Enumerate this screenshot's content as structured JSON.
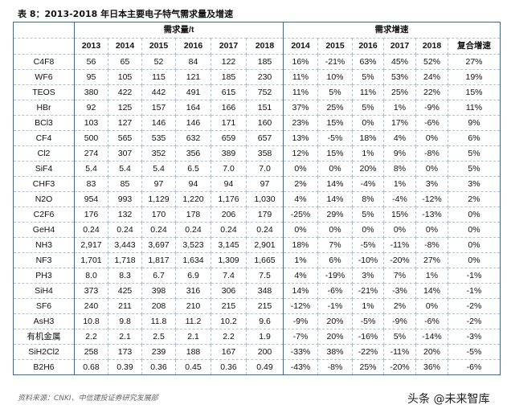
{
  "title": "表 8：2013-2018 年日本主要电子特气需求量及增速",
  "header": {
    "group_demand": "需求量/t",
    "group_growth": "需求增速",
    "demand_years": [
      "2013",
      "2014",
      "2015",
      "2016",
      "2017",
      "2018"
    ],
    "growth_years": [
      "2014",
      "2015",
      "2016",
      "2017",
      "2018",
      "复合增速"
    ]
  },
  "rows": [
    {
      "name": "C4F8",
      "d": [
        "56",
        "65",
        "52",
        "84",
        "122",
        "185"
      ],
      "g": [
        "16%",
        "-21%",
        "63%",
        "45%",
        "52%",
        "27%"
      ]
    },
    {
      "name": "WF6",
      "d": [
        "95",
        "105",
        "115",
        "121",
        "185",
        "230"
      ],
      "g": [
        "11%",
        "10%",
        "5%",
        "53%",
        "24%",
        "19%"
      ]
    },
    {
      "name": "TEOS",
      "d": [
        "380",
        "422",
        "442",
        "491",
        "615",
        "752"
      ],
      "g": [
        "11%",
        "5%",
        "11%",
        "25%",
        "22%",
        "15%"
      ]
    },
    {
      "name": "HBr",
      "d": [
        "92",
        "125",
        "157",
        "164",
        "166",
        "151"
      ],
      "g": [
        "37%",
        "25%",
        "5%",
        "1%",
        "-9%",
        "11%"
      ]
    },
    {
      "name": "BCl3",
      "d": [
        "103",
        "127",
        "146",
        "146",
        "171",
        "160"
      ],
      "g": [
        "23%",
        "15%",
        "0%",
        "17%",
        "-6%",
        "9%"
      ]
    },
    {
      "name": "CF4",
      "d": [
        "500",
        "565",
        "535",
        "632",
        "659",
        "657"
      ],
      "g": [
        "13%",
        "-5%",
        "18%",
        "4%",
        "0%",
        "6%"
      ]
    },
    {
      "name": "Cl2",
      "d": [
        "274",
        "307",
        "352",
        "356",
        "389",
        "358"
      ],
      "g": [
        "12%",
        "15%",
        "1%",
        "9%",
        "-8%",
        "5%"
      ]
    },
    {
      "name": "SiF4",
      "d": [
        "5.4",
        "5.4",
        "5.4",
        "6.5",
        "7.0",
        "7.0"
      ],
      "g": [
        "0%",
        "0%",
        "20%",
        "8%",
        "0%",
        "5%"
      ]
    },
    {
      "name": "CHF3",
      "d": [
        "83",
        "85",
        "97",
        "94",
        "94",
        "97"
      ],
      "g": [
        "2%",
        "14%",
        "-4%",
        "1%",
        "3%",
        "3%"
      ]
    },
    {
      "name": "N2O",
      "d": [
        "954",
        "993",
        "1,129",
        "1,220",
        "1,176",
        "1,030"
      ],
      "g": [
        "4%",
        "14%",
        "8%",
        "-4%",
        "-12%",
        "2%"
      ]
    },
    {
      "name": "C2F6",
      "d": [
        "176",
        "132",
        "170",
        "178",
        "206",
        "179"
      ],
      "g": [
        "-25%",
        "29%",
        "5%",
        "15%",
        "-13%",
        "0%"
      ]
    },
    {
      "name": "GeH4",
      "d": [
        "0.24",
        "0.24",
        "0.24",
        "0.24",
        "0.24",
        "0.24"
      ],
      "g": [
        "0%",
        "0%",
        "0%",
        "0%",
        "0%",
        "0%"
      ]
    },
    {
      "name": "NH3",
      "d": [
        "2,917",
        "3,443",
        "3,697",
        "3,523",
        "3,145",
        "2,901"
      ],
      "g": [
        "18%",
        "7%",
        "-5%",
        "-11%",
        "-8%",
        "0%"
      ]
    },
    {
      "name": "NF3",
      "d": [
        "1,701",
        "1,718",
        "1,817",
        "1,634",
        "1,309",
        "1,665"
      ],
      "g": [
        "1%",
        "6%",
        "-10%",
        "-20%",
        "27%",
        "0%"
      ]
    },
    {
      "name": "PH3",
      "d": [
        "8.0",
        "8.3",
        "6.7",
        "6.9",
        "7.4",
        "7.5"
      ],
      "g": [
        "4%",
        "-19%",
        "3%",
        "7%",
        "1%",
        "-1%"
      ]
    },
    {
      "name": "SiH4",
      "d": [
        "373",
        "425",
        "398",
        "316",
        "306",
        "348"
      ],
      "g": [
        "14%",
        "-6%",
        "-21%",
        "-3%",
        "14%",
        "-1%"
      ]
    },
    {
      "name": "SF6",
      "d": [
        "240",
        "211",
        "208",
        "210",
        "215",
        "215"
      ],
      "g": [
        "-12%",
        "-1%",
        "1%",
        "2%",
        "0%",
        "-2%"
      ]
    },
    {
      "name": "AsH3",
      "d": [
        "10.8",
        "9.8",
        "11.8",
        "11.2",
        "10.2",
        "9.6"
      ],
      "g": [
        "-9%",
        "20%",
        "-5%",
        "-9%",
        "-6%",
        "-2%"
      ]
    },
    {
      "name": "有机金属",
      "d": [
        "2.2",
        "2.1",
        "2.5",
        "2.1",
        "2.2",
        "1.9"
      ],
      "g": [
        "-7%",
        "20%",
        "-16%",
        "5%",
        "-14%",
        "-3%"
      ]
    },
    {
      "name": "SiH2Cl2",
      "d": [
        "258",
        "173",
        "239",
        "188",
        "167",
        "200"
      ],
      "g": [
        "-33%",
        "38%",
        "-22%",
        "-11%",
        "20%",
        "-5%"
      ]
    },
    {
      "name": "B2H6",
      "d": [
        "0.68",
        "0.39",
        "0.36",
        "0.45",
        "0.36",
        "0.49"
      ],
      "g": [
        "-43%",
        "-8%",
        "25%",
        "-20%",
        "36%",
        "-6%"
      ]
    }
  ],
  "source": "资料来源：CNKI、中信建投证券研究发展部",
  "watermark": "头条 @未来智库"
}
